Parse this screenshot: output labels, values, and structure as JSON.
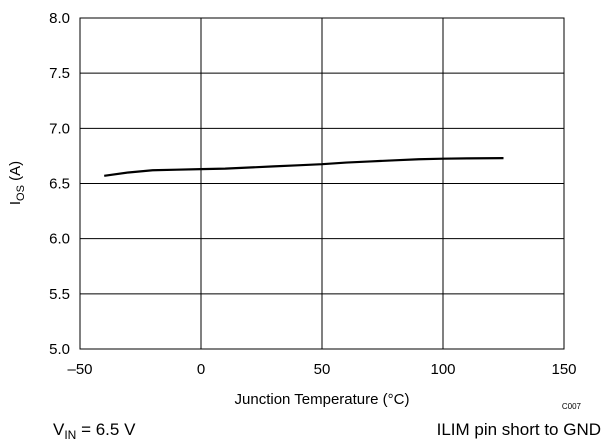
{
  "chart_data": {
    "type": "line",
    "title": "",
    "xlabel": "Junction Temperature (°C)",
    "ylabel_main": "I",
    "ylabel_sub": "OS",
    "ylabel_unit": "(A)",
    "xlim": [
      -50,
      150
    ],
    "ylim": [
      5.0,
      8.0
    ],
    "x_ticks": [
      -50,
      0,
      50,
      100,
      150
    ],
    "x_tick_labels": [
      "–50",
      "0",
      "50",
      "100",
      "150"
    ],
    "y_ticks": [
      5.0,
      5.5,
      6.0,
      6.5,
      7.0,
      7.5,
      8.0
    ],
    "y_tick_labels": [
      "5.0",
      "5.5",
      "6.0",
      "6.5",
      "7.0",
      "7.5",
      "8.0"
    ],
    "grid": true,
    "line_color": "#000000",
    "series": [
      {
        "x": [
          -40,
          -30,
          -20,
          -10,
          0,
          10,
          20,
          30,
          40,
          50,
          60,
          70,
          80,
          90,
          100,
          110,
          125
        ],
        "y": [
          6.57,
          6.6,
          6.62,
          6.625,
          6.63,
          6.635,
          6.645,
          6.655,
          6.665,
          6.675,
          6.69,
          6.7,
          6.71,
          6.72,
          6.725,
          6.728,
          6.73
        ]
      }
    ]
  },
  "figure_code": "C007",
  "conditions": {
    "left_main": "V",
    "left_sub": "IN",
    "left_rest": " = 6.5 V",
    "right": "ILIM pin short to GND"
  }
}
